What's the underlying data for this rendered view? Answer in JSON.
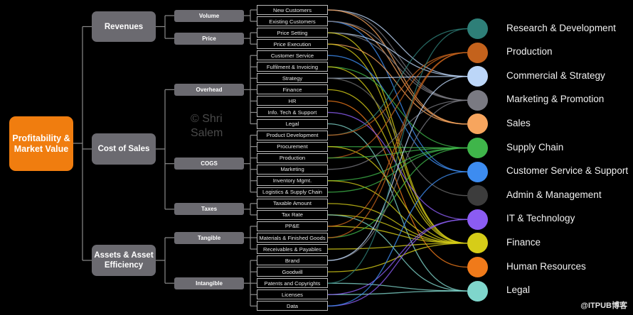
{
  "root": {
    "label": "Profitability & Market Value",
    "color": "#f07d0f"
  },
  "level1": [
    {
      "label": "Revenues",
      "children": [
        0,
        1
      ]
    },
    {
      "label": "Cost of Sales",
      "children": [
        2,
        3,
        4
      ]
    },
    {
      "label": "Assets & Asset Efficiency",
      "children": [
        5,
        6
      ]
    }
  ],
  "level2": [
    {
      "label": "Volume",
      "leaves": [
        0,
        1
      ]
    },
    {
      "label": "Price",
      "leaves": [
        2,
        3
      ]
    },
    {
      "label": "Overhead",
      "leaves": [
        4,
        5,
        6,
        7,
        8,
        9,
        10
      ]
    },
    {
      "label": "COGS",
      "leaves": [
        11,
        12,
        13,
        14,
        15,
        16
      ]
    },
    {
      "label": "Taxes",
      "leaves": [
        17,
        18
      ]
    },
    {
      "label": "Tangible",
      "leaves": [
        19,
        20,
        21
      ]
    },
    {
      "label": "Intangible",
      "leaves": [
        22,
        23,
        24,
        25,
        26
      ]
    }
  ],
  "leaves": [
    "New Customers",
    "Existing Customers",
    "Price Setting",
    "Price Execution",
    "Customer Service",
    "Fulfilment & Invoicing",
    "Strategy",
    "Finance",
    "HR",
    "Info. Tech & Support",
    "Legal",
    "Product Development",
    "Procurement",
    "Production",
    "Marketing",
    "Inventory Mgmt.",
    "Logistics & Supply Chain",
    "Taxable Amount",
    "Tax Rate",
    "PP&E",
    "Materials & Finished Goods",
    "Receivables & Payables",
    "Brand",
    "Goodwill",
    "Patents and Copyrights",
    "Licenses",
    "Data"
  ],
  "targets": [
    {
      "label": "Research & Development",
      "color": "#2e7f78"
    },
    {
      "label": "Production",
      "color": "#c4621c"
    },
    {
      "label": "Commercial & Strategy",
      "color": "#bcd6f8"
    },
    {
      "label": "Marketing & Promotion",
      "color": "#7a7a82"
    },
    {
      "label": "Sales",
      "color": "#f7a55e"
    },
    {
      "label": "Supply Chain",
      "color": "#3fb54a"
    },
    {
      "label": "Customer Service & Support",
      "color": "#3d8cf0"
    },
    {
      "label": "Admin & Management",
      "color": "#3c3c3c"
    },
    {
      "label": "IT & Technology",
      "color": "#8b5cf2"
    },
    {
      "label": "Finance",
      "color": "#d6cd18"
    },
    {
      "label": "Human Resources",
      "color": "#f07a1a"
    },
    {
      "label": "Legal",
      "color": "#7fd6cc"
    }
  ],
  "connections": [
    [
      0,
      2
    ],
    [
      0,
      3
    ],
    [
      0,
      4
    ],
    [
      1,
      4
    ],
    [
      1,
      6
    ],
    [
      1,
      3
    ],
    [
      2,
      2
    ],
    [
      2,
      3
    ],
    [
      2,
      9
    ],
    [
      3,
      4
    ],
    [
      3,
      9
    ],
    [
      4,
      6
    ],
    [
      5,
      5
    ],
    [
      5,
      9
    ],
    [
      6,
      2
    ],
    [
      6,
      7
    ],
    [
      7,
      9
    ],
    [
      8,
      10
    ],
    [
      9,
      8
    ],
    [
      10,
      11
    ],
    [
      11,
      0
    ],
    [
      11,
      1
    ],
    [
      12,
      5
    ],
    [
      12,
      9
    ],
    [
      13,
      1
    ],
    [
      13,
      5
    ],
    [
      14,
      3
    ],
    [
      15,
      5
    ],
    [
      15,
      9
    ],
    [
      16,
      5
    ],
    [
      17,
      9
    ],
    [
      18,
      9
    ],
    [
      18,
      11
    ],
    [
      19,
      9
    ],
    [
      19,
      1
    ],
    [
      20,
      5
    ],
    [
      20,
      1
    ],
    [
      21,
      9
    ],
    [
      22,
      3
    ],
    [
      22,
      2
    ],
    [
      23,
      9
    ],
    [
      24,
      11
    ],
    [
      24,
      0
    ],
    [
      25,
      11
    ],
    [
      25,
      8
    ],
    [
      26,
      8
    ],
    [
      26,
      6
    ]
  ],
  "watermark": "© Shri Salem",
  "credit": "@ITPUB博客"
}
